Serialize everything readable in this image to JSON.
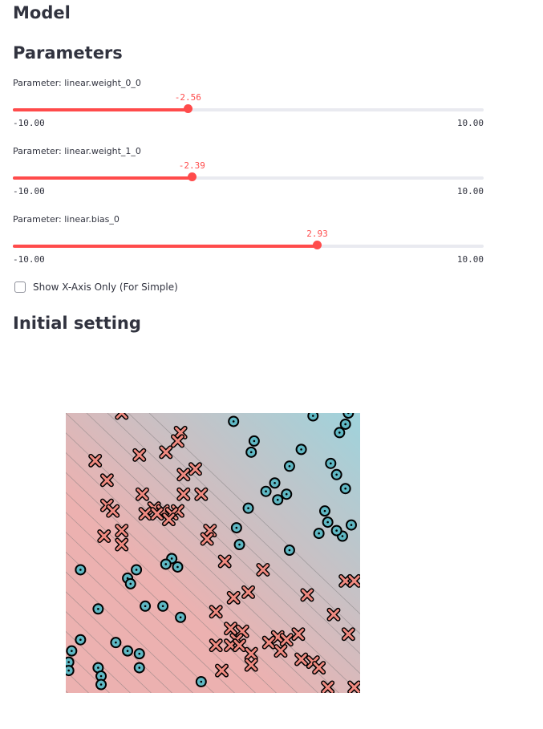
{
  "model_heading": "Model",
  "parameters_heading": "Parameters",
  "initial_heading": "Initial setting",
  "sliders": [
    {
      "label": "Parameter: linear.weight_0_0",
      "value": -2.56,
      "value_text": "-2.56",
      "min": -10,
      "max": 10,
      "min_text": "-10.00",
      "max_text": "10.00"
    },
    {
      "label": "Parameter: linear.weight_1_0",
      "value": -2.39,
      "value_text": "-2.39",
      "min": -10,
      "max": 10,
      "min_text": "-10.00",
      "max_text": "10.00"
    },
    {
      "label": "Parameter: linear.bias_0",
      "value": 2.93,
      "value_text": "2.93",
      "min": -10,
      "max": 10,
      "min_text": "-10.00",
      "max_text": "10.00"
    }
  ],
  "checkbox": {
    "label": "Show X-Axis Only (For Simple)",
    "checked": false
  },
  "colors": {
    "accent": "#ff4b4b",
    "class_o": "#5fb8c4",
    "class_x": "#f08a80",
    "bg_red": "#ecb1b0",
    "bg_blue": "#9fd3dc"
  },
  "chart_data": {
    "type": "scatter",
    "xlim": [
      0,
      1
    ],
    "ylim": [
      0,
      1
    ],
    "grid": false,
    "series": [
      {
        "marker": "o",
        "points": [
          [
            0.57,
            0.97
          ],
          [
            0.64,
            0.9
          ],
          [
            0.63,
            0.86
          ],
          [
            0.84,
            0.99
          ],
          [
            0.93,
            0.93
          ],
          [
            0.96,
            1.0
          ],
          [
            0.95,
            0.96
          ],
          [
            0.8,
            0.87
          ],
          [
            0.76,
            0.81
          ],
          [
            0.9,
            0.82
          ],
          [
            0.92,
            0.78
          ],
          [
            0.71,
            0.75
          ],
          [
            0.68,
            0.72
          ],
          [
            0.75,
            0.71
          ],
          [
            0.72,
            0.69
          ],
          [
            0.95,
            0.73
          ],
          [
            0.88,
            0.65
          ],
          [
            0.62,
            0.66
          ],
          [
            0.58,
            0.59
          ],
          [
            0.89,
            0.61
          ],
          [
            0.97,
            0.6
          ],
          [
            0.86,
            0.57
          ],
          [
            0.94,
            0.56
          ],
          [
            0.92,
            0.58
          ],
          [
            0.59,
            0.53
          ],
          [
            0.76,
            0.51
          ],
          [
            0.36,
            0.48
          ],
          [
            0.34,
            0.46
          ],
          [
            0.38,
            0.45
          ],
          [
            0.05,
            0.44
          ],
          [
            0.24,
            0.44
          ],
          [
            0.21,
            0.41
          ],
          [
            0.22,
            0.39
          ],
          [
            0.27,
            0.31
          ],
          [
            0.33,
            0.31
          ],
          [
            0.39,
            0.27
          ],
          [
            0.11,
            0.3
          ],
          [
            0.05,
            0.19
          ],
          [
            0.17,
            0.18
          ],
          [
            0.21,
            0.15
          ],
          [
            0.25,
            0.14
          ],
          [
            0.02,
            0.15
          ],
          [
            0.01,
            0.11
          ],
          [
            0.11,
            0.09
          ],
          [
            0.12,
            0.06
          ],
          [
            0.25,
            0.09
          ],
          [
            0.01,
            0.08
          ],
          [
            0.12,
            0.03
          ],
          [
            0.46,
            0.04
          ]
        ]
      },
      {
        "marker": "x",
        "points": [
          [
            0.19,
            1.0
          ],
          [
            0.39,
            0.93
          ],
          [
            0.38,
            0.9
          ],
          [
            0.34,
            0.86
          ],
          [
            0.44,
            0.8
          ],
          [
            0.4,
            0.78
          ],
          [
            0.25,
            0.85
          ],
          [
            0.1,
            0.83
          ],
          [
            0.14,
            0.76
          ],
          [
            0.26,
            0.71
          ],
          [
            0.4,
            0.71
          ],
          [
            0.46,
            0.71
          ],
          [
            0.14,
            0.67
          ],
          [
            0.16,
            0.65
          ],
          [
            0.3,
            0.66
          ],
          [
            0.33,
            0.65
          ],
          [
            0.38,
            0.65
          ],
          [
            0.36,
            0.64
          ],
          [
            0.27,
            0.64
          ],
          [
            0.31,
            0.64
          ],
          [
            0.35,
            0.62
          ],
          [
            0.19,
            0.58
          ],
          [
            0.13,
            0.56
          ],
          [
            0.19,
            0.53
          ],
          [
            0.49,
            0.58
          ],
          [
            0.48,
            0.55
          ],
          [
            0.54,
            0.47
          ],
          [
            0.67,
            0.44
          ],
          [
            0.95,
            0.4
          ],
          [
            0.98,
            0.4
          ],
          [
            0.82,
            0.35
          ],
          [
            0.62,
            0.36
          ],
          [
            0.57,
            0.34
          ],
          [
            0.51,
            0.29
          ],
          [
            0.91,
            0.28
          ],
          [
            0.56,
            0.23
          ],
          [
            0.6,
            0.22
          ],
          [
            0.58,
            0.19
          ],
          [
            0.56,
            0.17
          ],
          [
            0.59,
            0.17
          ],
          [
            0.72,
            0.2
          ],
          [
            0.75,
            0.19
          ],
          [
            0.69,
            0.18
          ],
          [
            0.73,
            0.15
          ],
          [
            0.79,
            0.21
          ],
          [
            0.96,
            0.21
          ],
          [
            0.51,
            0.17
          ],
          [
            0.63,
            0.14
          ],
          [
            0.63,
            0.1
          ],
          [
            0.8,
            0.12
          ],
          [
            0.84,
            0.11
          ],
          [
            0.86,
            0.09
          ],
          [
            0.53,
            0.08
          ],
          [
            0.89,
            0.02
          ],
          [
            0.98,
            0.02
          ]
        ]
      }
    ]
  }
}
